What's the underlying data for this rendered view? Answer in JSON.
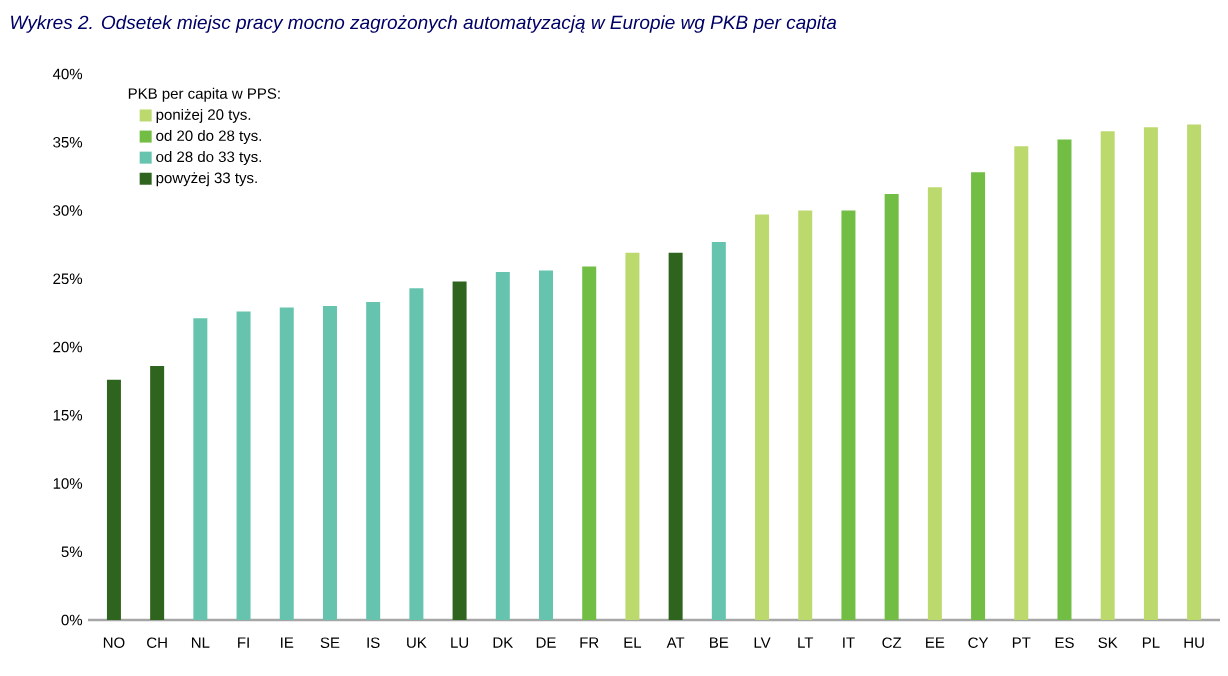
{
  "chart_data": {
    "type": "bar",
    "title": "Wykres 2. Odsetek miejsc pracy mocno zagrożonych automatyzacją w Europie wg PKB per capita",
    "legend_title": "PKB per capita w PPS:",
    "categories": [
      "NO",
      "CH",
      "NL",
      "FI",
      "IE",
      "SE",
      "IS",
      "UK",
      "LU",
      "DK",
      "DE",
      "FR",
      "EL",
      "AT",
      "BE",
      "LV",
      "LT",
      "IT",
      "CZ",
      "EE",
      "CY",
      "PT",
      "ES",
      "SK",
      "PL",
      "HU"
    ],
    "series": [
      {
        "name": "poniżej 20 tys.",
        "color": "#bcd96e",
        "values": [
          null,
          null,
          null,
          null,
          null,
          null,
          null,
          null,
          null,
          null,
          null,
          null,
          26.9,
          null,
          null,
          29.7,
          30.0,
          null,
          null,
          31.7,
          null,
          34.7,
          null,
          35.8,
          36.1,
          36.3
        ]
      },
      {
        "name": "od 20 do 28 tys.",
        "color": "#72bd44",
        "values": [
          null,
          null,
          null,
          null,
          null,
          null,
          null,
          null,
          null,
          null,
          null,
          25.9,
          null,
          null,
          null,
          null,
          null,
          30.0,
          31.2,
          null,
          32.8,
          null,
          35.2,
          null,
          null,
          null
        ]
      },
      {
        "name": "od 28 do 33 tys.",
        "color": "#66c4ae",
        "values": [
          null,
          null,
          22.1,
          22.6,
          22.9,
          23.0,
          23.3,
          24.3,
          null,
          25.5,
          25.6,
          null,
          null,
          null,
          27.7,
          null,
          null,
          null,
          null,
          null,
          null,
          null,
          null,
          null,
          null,
          null
        ]
      },
      {
        "name": "powyżej 33 tys.",
        "color": "#2f641f",
        "values": [
          17.6,
          18.6,
          null,
          null,
          null,
          null,
          null,
          null,
          24.8,
          null,
          null,
          null,
          null,
          26.9,
          null,
          null,
          null,
          null,
          null,
          null,
          null,
          null,
          null,
          null,
          null,
          null
        ]
      }
    ],
    "ylim": [
      0,
      40
    ],
    "yticks": [
      {
        "value": 0,
        "label": "0%"
      },
      {
        "value": 5,
        "label": "5%"
      },
      {
        "value": 10,
        "label": "10%"
      },
      {
        "value": 15,
        "label": "15%"
      },
      {
        "value": 20,
        "label": "20%"
      },
      {
        "value": 25,
        "label": "25%"
      },
      {
        "value": 30,
        "label": "30%"
      },
      {
        "value": 35,
        "label": "35%"
      },
      {
        "value": 40,
        "label": "40%"
      }
    ],
    "legend": "top left",
    "grid": false
  }
}
